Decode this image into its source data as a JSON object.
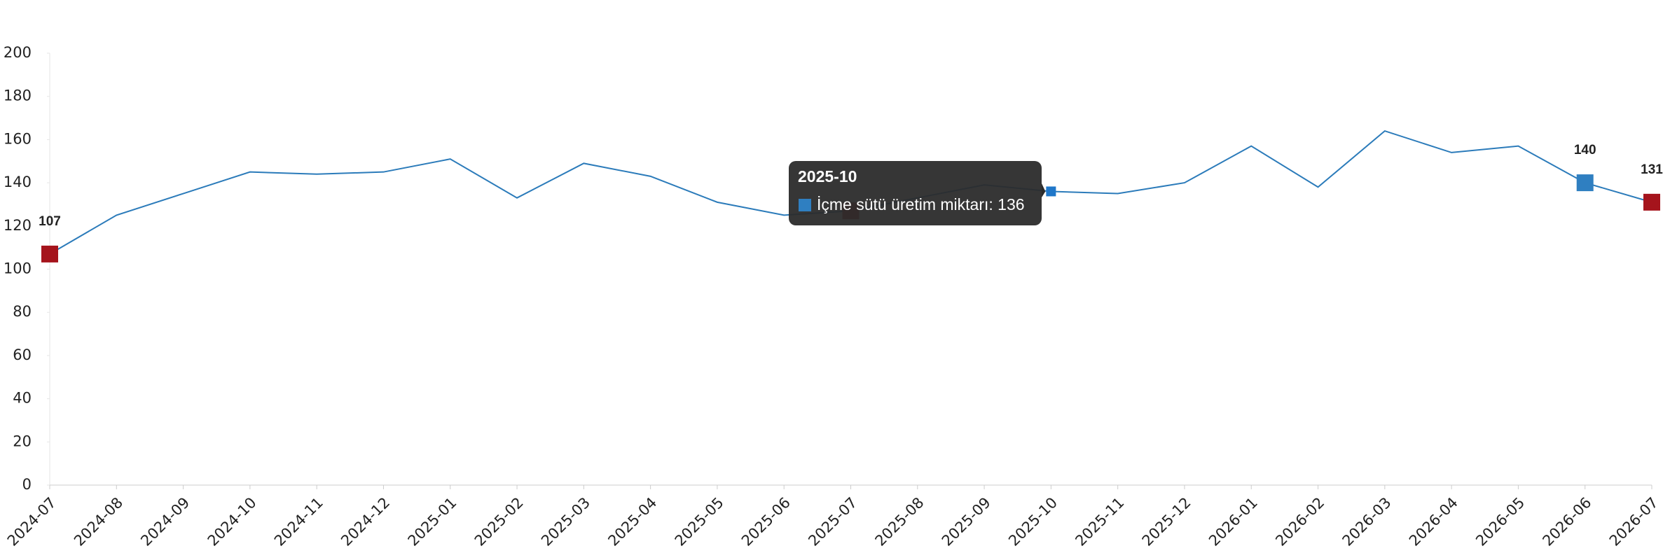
{
  "chart_data": {
    "type": "line",
    "categories": [
      "2024-07",
      "2024-08",
      "2024-09",
      "2024-10",
      "2024-11",
      "2024-12",
      "2025-01",
      "2025-02",
      "2025-03",
      "2025-04",
      "2025-05",
      "2025-06",
      "2025-07",
      "2025-08",
      "2025-09",
      "2025-10",
      "2025-11",
      "2025-12",
      "2026-01",
      "2026-02",
      "2026-03",
      "2026-04",
      "2026-05",
      "2026-06",
      "2026-07"
    ],
    "series": [
      {
        "name": "İçme sütü üretim miktarı",
        "color": "#2b7bba",
        "values": [
          107,
          125,
          135,
          145,
          144,
          145,
          151,
          133,
          149,
          143,
          131,
          125,
          127,
          133,
          139,
          136,
          135,
          140,
          157,
          138,
          164,
          154,
          157,
          140,
          131
        ],
        "value_labels": [
          "107",
          null,
          null,
          null,
          null,
          null,
          null,
          null,
          null,
          null,
          null,
          null,
          null,
          null,
          null,
          null,
          null,
          null,
          null,
          null,
          null,
          null,
          null,
          "140",
          "131"
        ]
      }
    ],
    "markers": [
      {
        "x": "2024-07",
        "color": "#a5141c"
      },
      {
        "x": "2025-07",
        "color": "#a5141c"
      },
      {
        "x": "2026-06",
        "color": "#2f7fc1"
      },
      {
        "x": "2026-07",
        "color": "#a5141c"
      }
    ],
    "ylim": [
      0,
      200
    ],
    "yticks": [
      0,
      20,
      40,
      60,
      80,
      100,
      120,
      140,
      160,
      180,
      200
    ],
    "tooltip": {
      "x": "2025-10",
      "title": "2025-10",
      "text": "İçme sütü üretim miktarı: 136"
    }
  }
}
